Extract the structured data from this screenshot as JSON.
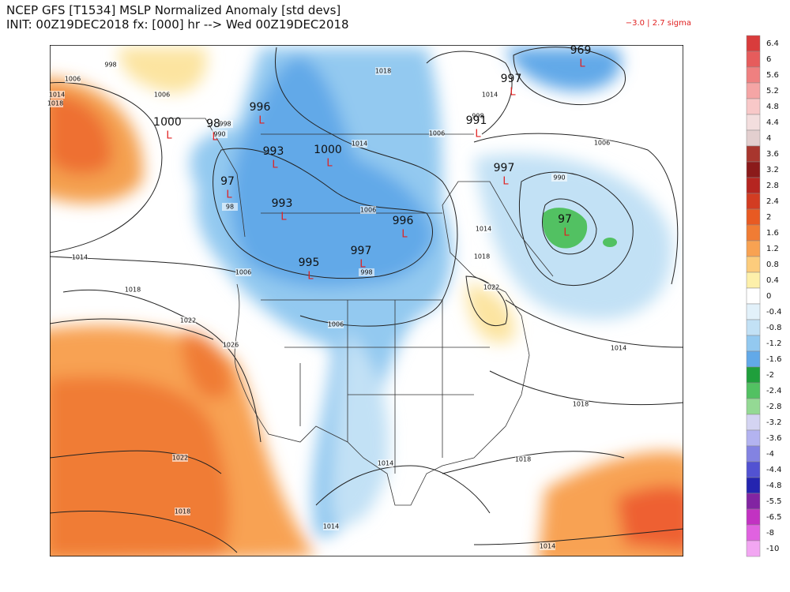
{
  "header": {
    "line1": "NCEP GFS [T1534] MSLP Normalized Anomaly [std devs]",
    "line2": "INIT: 00Z19DEC2018 fx: [000] hr --> Wed 00Z19DEC2018",
    "range": "−3.0 | 2.7 sigma"
  },
  "colorbar": {
    "labels": [
      6.4,
      6,
      5.6,
      5.2,
      4.8,
      4.4,
      4,
      3.6,
      3.2,
      2.8,
      2.4,
      2,
      1.6,
      1.2,
      0.8,
      0.4,
      0,
      -0.4,
      -0.8,
      -1.2,
      -1.6,
      -2,
      -2.4,
      -2.8,
      -3.2,
      -3.6,
      -4,
      -4.4,
      -4.8,
      -5.5,
      -6.5,
      -8,
      -10
    ],
    "colors": [
      "#d93c3c",
      "#e65c5c",
      "#ef8080",
      "#f5a5a5",
      "#f8c8c8",
      "#f3dede",
      "#e3cfcf",
      "#a8362e",
      "#8b1a1a",
      "#b52520",
      "#d23c22",
      "#e85a22",
      "#f07c34",
      "#f8a252",
      "#fccc7c",
      "#fdf0aa",
      "#ffffff",
      "#e2f1fa",
      "#c2e1f5",
      "#93c9f0",
      "#62a9e8",
      "#1f9f3c",
      "#52c162",
      "#94d994",
      "#d4d4f2",
      "#b3b3f0",
      "#8383e2",
      "#5252d2",
      "#2424b0",
      "#8224a2",
      "#c232c2",
      "#e062e0",
      "#f2a6f2"
    ]
  },
  "map": {
    "low_symbol": "L",
    "low_pressures": [
      "1000",
      "98",
      "996",
      "993",
      "1000",
      "97",
      "993",
      "996",
      "997",
      "995",
      "969",
      "997",
      "991",
      "997",
      "97"
    ],
    "isobar_labels": [
      "998",
      "1006",
      "1014",
      "1018",
      "1006",
      "998",
      "990",
      "1014",
      "1018",
      "1014",
      "1006",
      "998",
      "1006",
      "990",
      "1014",
      "1006",
      "998",
      "1006",
      "1014",
      "1018",
      "1022",
      "1018",
      "1022",
      "1006",
      "1026",
      "1014",
      "1018",
      "1022",
      "1018",
      "1014",
      "1018",
      "1014",
      "1014",
      "98"
    ]
  }
}
